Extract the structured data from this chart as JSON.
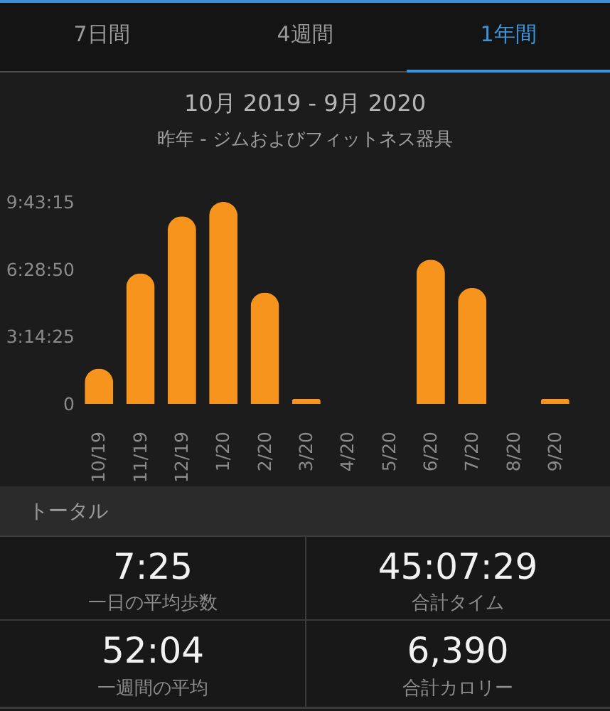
{
  "chart_data": {
    "type": "bar",
    "title": "10月 2019 - 9月 2020",
    "subtitle": "昨年 - ジムおよびフィットネス器具",
    "categories": [
      "10/19",
      "11/19",
      "12/19",
      "1/20",
      "2/20",
      "3/20",
      "4/20",
      "5/20",
      "6/20",
      "7/20",
      "8/20",
      "9/20"
    ],
    "values": [
      6100,
      22600,
      32500,
      35000,
      19300,
      900,
      0,
      0,
      25000,
      20100,
      0,
      900
    ],
    "color": "#f7941d",
    "ylim": [
      0,
      35000
    ],
    "yticks": [
      0,
      {
        "value": 11665,
        "label": "3:14:25"
      },
      {
        "value": 23330,
        "label": "6:28:50"
      },
      {
        "value": 34995,
        "label": "9:43:15"
      }
    ],
    "annotations": [
      "7日間",
      "4週間",
      "1年間",
      "トータル",
      "7:25",
      "一日の平均歩数",
      "45:07:29",
      "合計タイム",
      "52:04",
      "一週間の平均",
      "6,390",
      "合計カロリー"
    ]
  }
}
